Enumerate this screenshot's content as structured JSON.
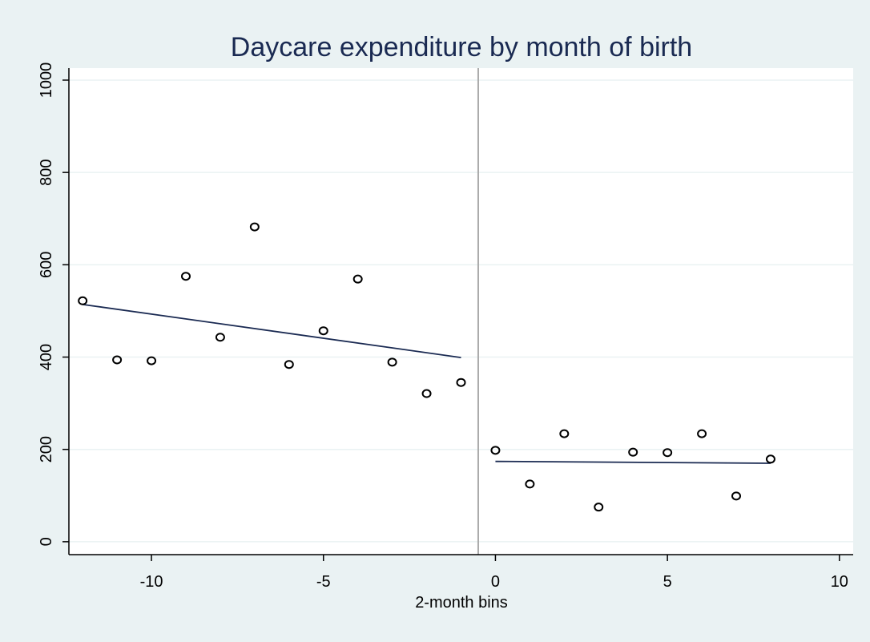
{
  "chart_data": {
    "type": "scatter",
    "title": "Daycare expenditure by month of birth",
    "x_label": "2-month bins",
    "x": [
      -12,
      -11,
      -10,
      -9,
      -8,
      -7,
      -6,
      -5,
      -4,
      -3,
      -2,
      -1,
      0,
      1,
      2,
      3,
      4,
      5,
      6,
      7,
      8
    ],
    "series": [
      {
        "color": "#000000",
        "values": [
          522,
          394,
          392,
          575,
          443,
          682,
          384,
          457,
          569,
          389,
          321,
          345,
          198,
          125,
          234,
          75,
          194,
          193,
          234,
          99,
          179
        ]
      }
    ],
    "fit_lines": [
      {
        "color": "#1a2a52",
        "x": [
          -12,
          -1
        ],
        "values": [
          514,
          399
        ]
      },
      {
        "color": "#1a2a52",
        "x": [
          0,
          8
        ],
        "values": [
          174,
          170
        ]
      }
    ],
    "xline": -0.5,
    "xlim": [
      -12.4,
      10.4
    ],
    "ylim": [
      -28,
      1026
    ],
    "xticks": [
      -10,
      -5,
      0,
      5,
      10
    ],
    "yticks": [
      0,
      200,
      400,
      600,
      800,
      1000
    ],
    "grid": true
  }
}
